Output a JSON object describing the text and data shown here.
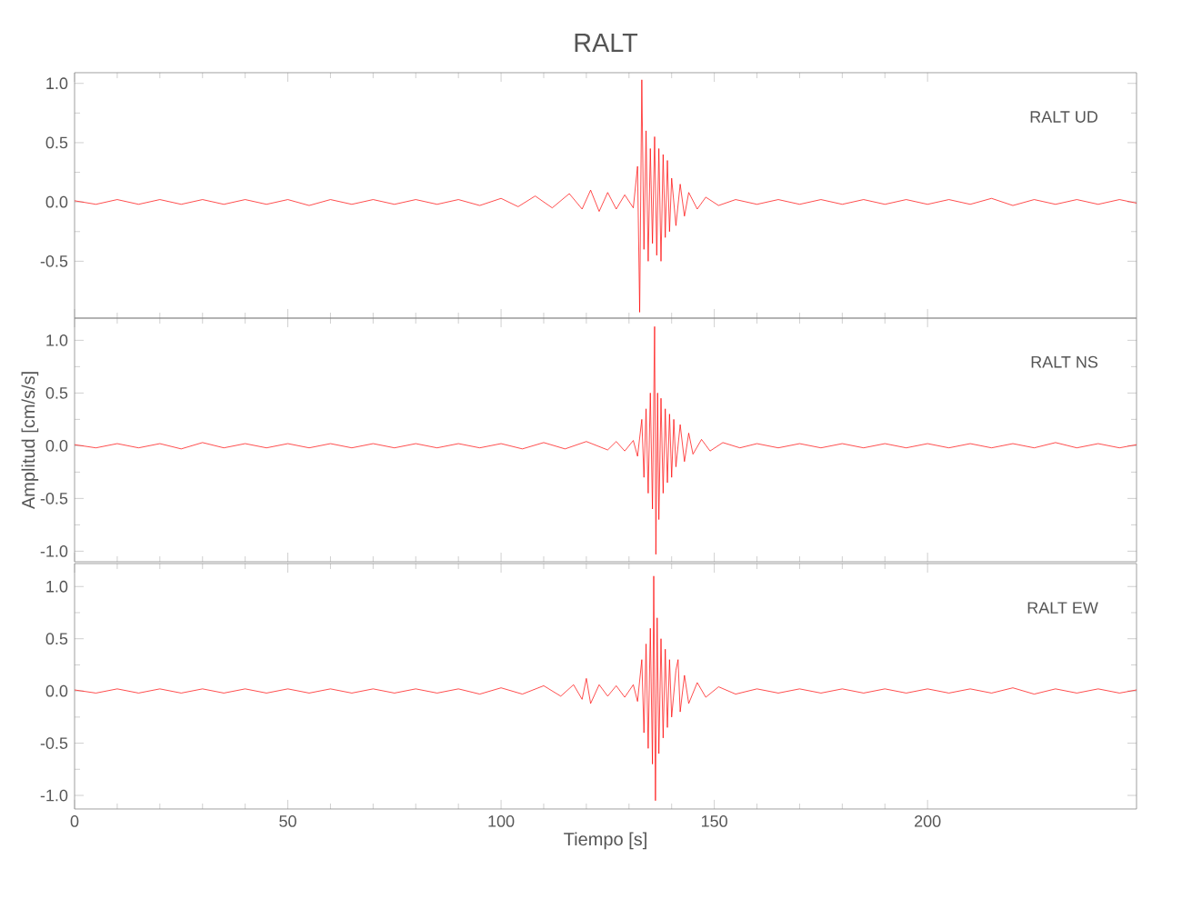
{
  "chart_data": [
    {
      "type": "line",
      "title": "RALT",
      "annotations": [
        "RALT UD"
      ],
      "color": "#ff0000",
      "xlim": [
        0,
        249
      ],
      "ylim": [
        -0.98,
        1.09
      ],
      "tick_labels": "y",
      "xticks": [
        0,
        50,
        100,
        150,
        200
      ],
      "yticks": [
        {
          "value": -0.5,
          "label": "-0.5"
        },
        {
          "value": 0,
          "label": "0.0"
        },
        {
          "value": 0.5,
          "label": "0.5"
        },
        {
          "value": 1,
          "label": "1.0"
        }
      ],
      "x": [
        0,
        5,
        10,
        15,
        20,
        25,
        30,
        35,
        40,
        45,
        50,
        55,
        60,
        65,
        70,
        75,
        80,
        85,
        90,
        95,
        100,
        104,
        108,
        112,
        116,
        119,
        121,
        123,
        125,
        127,
        129,
        131,
        132,
        132.5,
        133,
        133.5,
        134,
        134.5,
        135,
        135.5,
        136,
        136.5,
        137,
        137.5,
        138,
        138.5,
        139,
        139.5,
        140,
        141,
        142,
        143,
        144,
        146,
        148,
        151,
        155,
        160,
        165,
        170,
        175,
        180,
        185,
        190,
        195,
        200,
        205,
        210,
        215,
        220,
        225,
        230,
        235,
        240,
        245,
        249
      ],
      "values": [
        0.01,
        -0.02,
        0.02,
        -0.02,
        0.02,
        -0.02,
        0.02,
        -0.02,
        0.02,
        -0.02,
        0.02,
        -0.03,
        0.02,
        -0.02,
        0.02,
        -0.02,
        0.02,
        -0.02,
        0.02,
        -0.03,
        0.03,
        -0.04,
        0.05,
        -0.05,
        0.07,
        -0.06,
        0.1,
        -0.08,
        0.08,
        -0.06,
        0.06,
        -0.05,
        0.3,
        -0.93,
        1.03,
        -0.4,
        0.6,
        -0.5,
        0.45,
        -0.35,
        0.55,
        -0.45,
        0.45,
        -0.5,
        0.4,
        -0.3,
        0.35,
        -0.25,
        0.2,
        -0.2,
        0.15,
        -0.12,
        0.08,
        -0.06,
        0.04,
        -0.03,
        0.02,
        -0.02,
        0.02,
        -0.02,
        0.02,
        -0.02,
        0.02,
        -0.02,
        0.02,
        -0.02,
        0.02,
        -0.02,
        0.03,
        -0.03,
        0.02,
        -0.02,
        0.02,
        -0.02,
        0.02,
        -0.01
      ]
    },
    {
      "type": "line",
      "ylabel": "Amplitud [cm/s/s]",
      "annotations": [
        "RALT NS"
      ],
      "color": "#ff0000",
      "xlim": [
        0,
        249
      ],
      "ylim": [
        -1.1,
        1.21
      ],
      "tick_labels": "y",
      "xticks": [
        0,
        50,
        100,
        150,
        200
      ],
      "yticks": [
        {
          "value": -1,
          "label": "-1.0"
        },
        {
          "value": -0.5,
          "label": "-0.5"
        },
        {
          "value": 0,
          "label": "0.0"
        },
        {
          "value": 0.5,
          "label": "0.5"
        },
        {
          "value": 1,
          "label": "1.0"
        }
      ],
      "x": [
        0,
        5,
        10,
        15,
        20,
        25,
        30,
        35,
        40,
        45,
        50,
        55,
        60,
        65,
        70,
        75,
        80,
        85,
        90,
        95,
        100,
        105,
        110,
        115,
        120,
        125,
        127,
        129,
        131,
        132,
        133,
        133.5,
        134,
        134.5,
        135,
        135.5,
        136,
        136.3,
        136.7,
        137,
        137.5,
        138,
        138.5,
        139,
        139.5,
        140,
        140.5,
        141,
        142,
        143,
        144,
        145,
        147,
        149,
        152,
        156,
        160,
        165,
        170,
        175,
        180,
        185,
        190,
        195,
        200,
        205,
        210,
        215,
        220,
        225,
        230,
        235,
        240,
        245,
        249
      ],
      "values": [
        0.01,
        -0.02,
        0.02,
        -0.02,
        0.02,
        -0.03,
        0.03,
        -0.02,
        0.02,
        -0.02,
        0.02,
        -0.02,
        0.02,
        -0.02,
        0.02,
        -0.02,
        0.02,
        -0.02,
        0.02,
        -0.02,
        0.02,
        -0.03,
        0.03,
        -0.03,
        0.04,
        -0.04,
        0.04,
        -0.05,
        0.05,
        -0.1,
        0.25,
        -0.3,
        0.35,
        -0.45,
        0.5,
        -0.6,
        1.13,
        -1.03,
        0.5,
        -0.7,
        0.45,
        -0.45,
        0.35,
        -0.35,
        0.3,
        -0.3,
        0.25,
        -0.2,
        0.2,
        -0.15,
        0.12,
        -0.08,
        0.06,
        -0.05,
        0.03,
        -0.02,
        0.02,
        -0.02,
        0.02,
        -0.02,
        0.02,
        -0.02,
        0.02,
        -0.02,
        0.02,
        -0.02,
        0.02,
        -0.02,
        0.02,
        -0.02,
        0.03,
        -0.02,
        0.02,
        -0.02,
        0.01
      ]
    },
    {
      "type": "line",
      "xlabel": "Tiempo [s]",
      "annotations": [
        "RALT EW"
      ],
      "color": "#ff0000",
      "xlim": [
        0,
        249
      ],
      "ylim": [
        -1.13,
        1.22
      ],
      "xticks": [
        0,
        50,
        100,
        150,
        200
      ],
      "yticks": [
        {
          "value": -1,
          "label": "-1.0"
        },
        {
          "value": -0.5,
          "label": "-0.5"
        },
        {
          "value": 0,
          "label": "0.0"
        },
        {
          "value": 0.5,
          "label": "0.5"
        },
        {
          "value": 1,
          "label": "1.0"
        }
      ],
      "x": [
        0,
        5,
        10,
        15,
        20,
        25,
        30,
        35,
        40,
        45,
        50,
        55,
        60,
        65,
        70,
        75,
        80,
        85,
        90,
        95,
        100,
        105,
        110,
        114,
        117,
        119,
        120,
        121,
        123,
        125,
        127,
        129,
        131,
        132,
        133,
        133.5,
        134,
        134.5,
        135,
        135.5,
        135.8,
        136.2,
        136.6,
        137,
        137.5,
        138,
        138.5,
        139,
        139.5,
        140,
        141,
        141.5,
        142,
        143,
        144,
        146,
        148,
        151,
        155,
        160,
        165,
        170,
        175,
        180,
        185,
        190,
        195,
        200,
        205,
        210,
        215,
        220,
        225,
        230,
        235,
        240,
        245,
        249
      ],
      "values": [
        0.01,
        -0.02,
        0.02,
        -0.02,
        0.02,
        -0.02,
        0.02,
        -0.02,
        0.02,
        -0.02,
        0.02,
        -0.02,
        0.02,
        -0.02,
        0.02,
        -0.02,
        0.02,
        -0.02,
        0.02,
        -0.03,
        0.03,
        -0.03,
        0.05,
        -0.05,
        0.06,
        -0.08,
        0.12,
        -0.12,
        0.06,
        -0.05,
        0.05,
        -0.06,
        0.06,
        -0.1,
        0.3,
        -0.4,
        0.45,
        -0.55,
        0.6,
        -0.7,
        1.1,
        -1.05,
        0.7,
        -0.6,
        0.5,
        -0.45,
        0.4,
        -0.35,
        0.3,
        -0.25,
        0.2,
        0.3,
        -0.2,
        0.15,
        -0.12,
        0.08,
        -0.06,
        0.04,
        -0.03,
        0.02,
        -0.02,
        0.02,
        -0.02,
        0.02,
        -0.02,
        0.02,
        -0.02,
        0.02,
        -0.02,
        0.02,
        -0.02,
        0.03,
        -0.03,
        0.02,
        -0.02,
        0.02,
        -0.02,
        0.01
      ]
    }
  ]
}
